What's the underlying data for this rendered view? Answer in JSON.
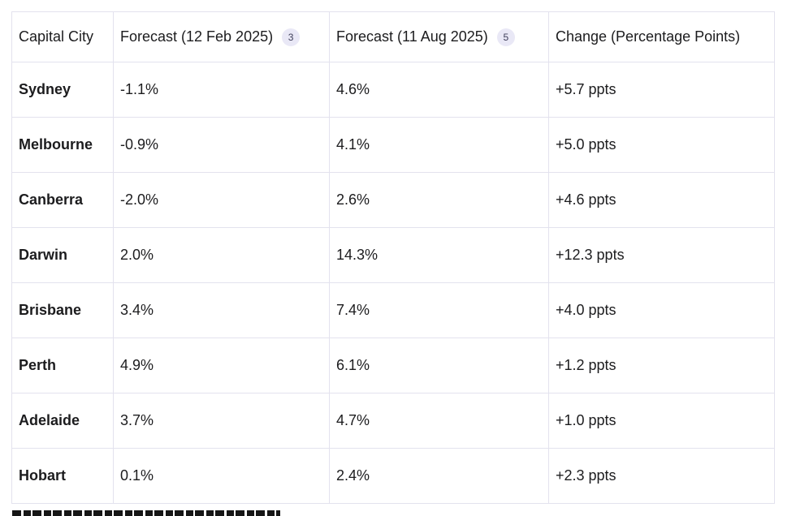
{
  "colors": {
    "page_background": "#ffffff",
    "table_border": "#e3e2ee",
    "text": "#1c1c1e",
    "citation_badge_background": "#e9e8f6",
    "citation_badge_text": "#3f3f5a"
  },
  "citations": {
    "forecast_feb_badge": "3",
    "forecast_aug_badge": "5"
  },
  "chart_data": {
    "type": "table",
    "columns": [
      "Capital City",
      "Forecast (12 Feb 2025)",
      "Forecast (11 Aug 2025)",
      "Change (Percentage Points)"
    ],
    "rows": [
      [
        "Sydney",
        "-1.1%",
        "4.6%",
        "+5.7 ppts"
      ],
      [
        "Melbourne",
        "-0.9%",
        "4.1%",
        "+5.0 ppts"
      ],
      [
        "Canberra",
        "-2.0%",
        "2.6%",
        "+4.6 ppts"
      ],
      [
        "Darwin",
        "2.0%",
        "14.3%",
        "+12.3 ppts"
      ],
      [
        "Brisbane",
        "3.4%",
        "7.4%",
        "+4.0 ppts"
      ],
      [
        "Perth",
        "4.9%",
        "6.1%",
        "+1.2 ppts"
      ],
      [
        "Adelaide",
        "3.7%",
        "4.7%",
        "+1.0 ppts"
      ],
      [
        "Hobart",
        "0.1%",
        "2.4%",
        "+2.3 ppts"
      ]
    ]
  }
}
